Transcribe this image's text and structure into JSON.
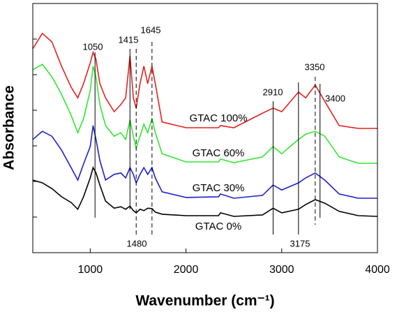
{
  "chart_data": {
    "type": "line",
    "x_label": "Wavenumber (cm⁻¹)",
    "y_label": "Absorbance",
    "xlim": [
      400,
      4000
    ],
    "xticks": [
      1000,
      2000,
      3000,
      4000
    ],
    "ylim": [
      0,
      7
    ],
    "yticks": [
      1,
      2,
      3,
      4,
      5,
      6
    ],
    "ytick_labels_visible": false,
    "grid": false,
    "x": [
      400,
      500,
      600,
      700,
      800,
      870,
      930,
      1000,
      1030,
      1060,
      1100,
      1160,
      1250,
      1320,
      1370,
      1415,
      1450,
      1480,
      1520,
      1560,
      1600,
      1645,
      1680,
      1750,
      2000,
      2340,
      2360,
      2500,
      2800,
      2910,
      3000,
      3175,
      3250,
      3350,
      3450,
      3600,
      3800,
      4000
    ],
    "series": [
      {
        "name": "GTAC 100%",
        "color": "#e3221f",
        "values": [
          5.73,
          6.16,
          5.92,
          5.24,
          4.65,
          4.35,
          4.75,
          5.33,
          5.63,
          5.43,
          4.75,
          4.35,
          3.96,
          4.16,
          4.35,
          5.53,
          4.35,
          4.06,
          4.75,
          5.24,
          4.75,
          5.24,
          4.75,
          3.67,
          3.51,
          3.51,
          3.57,
          3.51,
          3.92,
          4.06,
          3.96,
          4.51,
          4.35,
          4.71,
          4.25,
          3.57,
          3.49,
          3.49
        ]
      },
      {
        "name": "GTAC 60%",
        "color": "#33e633",
        "values": [
          5.14,
          5.29,
          4.94,
          4.45,
          3.86,
          3.37,
          3.76,
          4.55,
          5.24,
          4.94,
          4.16,
          3.57,
          3.27,
          3.37,
          3.18,
          3.73,
          3.27,
          2.94,
          3.27,
          3.61,
          3.37,
          3.76,
          3.37,
          2.78,
          2.55,
          2.55,
          2.63,
          2.53,
          2.69,
          2.98,
          2.78,
          3.18,
          3.33,
          3.41,
          3.27,
          2.69,
          2.51,
          2.51
        ]
      },
      {
        "name": "GTAC 30%",
        "color": "#1f1fc8",
        "values": [
          3.18,
          3.41,
          3.27,
          2.88,
          2.39,
          2.04,
          2.49,
          2.98,
          3.57,
          3.18,
          2.59,
          2.04,
          2.2,
          2.24,
          2.1,
          2.39,
          2.2,
          1.96,
          2.2,
          2.39,
          2.2,
          2.39,
          2.1,
          1.71,
          1.55,
          1.57,
          1.65,
          1.53,
          1.61,
          1.9,
          1.76,
          1.96,
          2.1,
          2.24,
          2.04,
          1.65,
          1.53,
          1.53
        ]
      },
      {
        "name": "GTAC 0%",
        "color": "#000000",
        "values": [
          2.04,
          1.96,
          1.8,
          1.57,
          1.41,
          1.22,
          1.57,
          2.1,
          2.39,
          2.24,
          1.9,
          1.45,
          1.25,
          1.29,
          1.22,
          1.31,
          1.18,
          1.12,
          1.22,
          1.18,
          1.25,
          1.24,
          1.14,
          1.08,
          1.04,
          1.04,
          1.12,
          1.02,
          1.06,
          1.25,
          1.12,
          1.22,
          1.35,
          1.49,
          1.39,
          1.16,
          1.04,
          1.02
        ]
      }
    ],
    "annotations": [
      {
        "x": 1050,
        "dashed": false
      },
      {
        "x": 1415,
        "dashed": false
      },
      {
        "x": 1480,
        "dashed": true
      },
      {
        "x": 1645,
        "dashed": true
      },
      {
        "x": 2910,
        "dashed": false
      },
      {
        "x": 3175,
        "dashed": false
      },
      {
        "x": 3350,
        "dashed": true
      },
      {
        "x": 3400,
        "dashed": false
      }
    ]
  }
}
